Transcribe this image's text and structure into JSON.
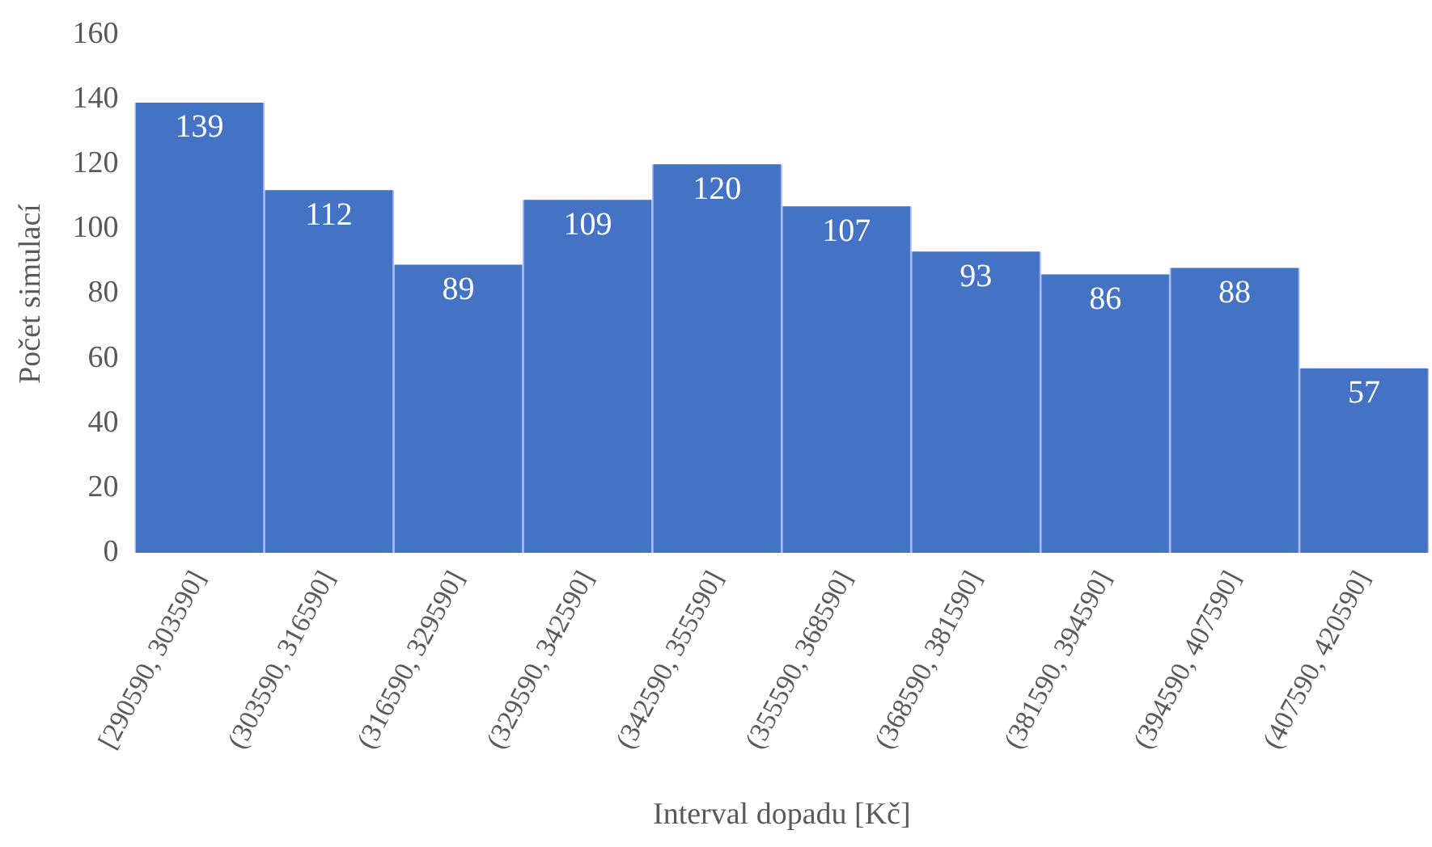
{
  "chart_data": {
    "type": "bar",
    "xlabel": "Interval dopadu [Kč]",
    "ylabel": "Počet simulací",
    "categories": [
      "[290590, 303590]",
      "(303590, 316590]",
      "(316590, 329590]",
      "(329590, 342590]",
      "(342590, 355590]",
      "(355590, 368590]",
      "(368590, 381590]",
      "(381590, 394590]",
      "(394590, 407590]",
      "(407590, 420590]"
    ],
    "values": [
      139,
      112,
      89,
      109,
      120,
      107,
      93,
      86,
      88,
      57
    ],
    "color": "#4472c4",
    "ylim": [
      0,
      160
    ],
    "yticks": [
      0,
      20,
      40,
      60,
      80,
      100,
      120,
      140,
      160
    ],
    "grid": false,
    "legend": false,
    "data_labels": true
  }
}
